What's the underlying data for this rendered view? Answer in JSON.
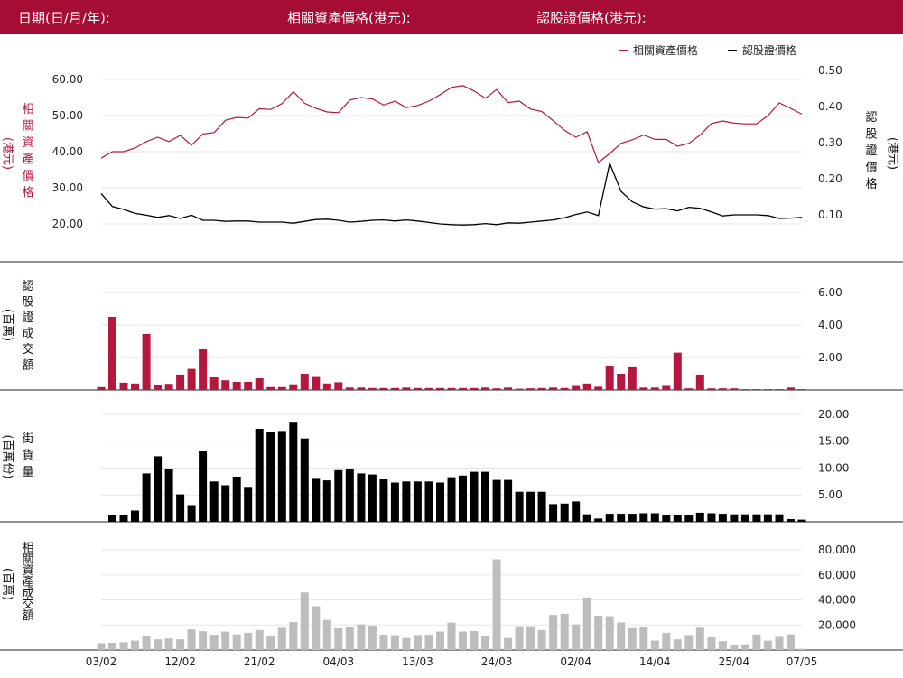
{
  "header": {
    "date_label": "日期(日/月/年):",
    "asset_price_label": "相關資產價格(港元):",
    "warrant_price_label": "認股證價格(港元):"
  },
  "colors": {
    "brand": "#a50d34",
    "asset": "#b5173f",
    "warrant": "#000000",
    "warrant_bar": "#b5173f",
    "street_bar": "#000000",
    "asset_turnover_bar": "#bdbdbd"
  },
  "chart_data": [
    {
      "type": "line",
      "legend": [
        "相關資產價格",
        "認股證價格"
      ],
      "legend_position": "top-right",
      "ylabel": "相關資產價格",
      "ylabel_unit": "(港元)",
      "y2label": "認股證價格",
      "y2label_unit": "(港元)",
      "ylim": [
        15,
        63
      ],
      "y_ticks": [
        "20.00",
        "30.00",
        "40.00",
        "50.00",
        "60.00"
      ],
      "y2lim": [
        0.025,
        0.505
      ],
      "y2_ticks": [
        "0.10",
        "0.20",
        "0.30",
        "0.40",
        "0.50"
      ],
      "series": [
        {
          "name": "相關資產價格",
          "values": [
            38.2,
            40.0,
            40.0,
            41.0,
            42.8,
            44.0,
            42.8,
            44.5,
            41.8,
            44.9,
            45.3,
            48.7,
            49.5,
            49.3,
            51.9,
            51.7,
            53.3,
            56.6,
            53.4,
            52.0,
            51.0,
            50.8,
            54.3,
            55.0,
            54.6,
            52.9,
            54.0,
            52.2,
            52.8,
            54.0,
            55.8,
            57.8,
            58.3,
            56.8,
            54.8,
            57.2,
            53.6,
            54.0,
            51.8,
            51.1,
            48.6,
            45.9,
            44.0,
            45.5,
            37.0,
            39.5,
            42.3,
            43.3,
            44.6,
            43.4,
            43.4,
            41.5,
            42.3,
            44.6,
            47.8,
            48.5,
            47.9,
            47.7,
            47.7,
            50.0,
            53.5,
            52.0,
            50.4
          ]
        },
        {
          "name": "認股證價格",
          "values": [
            0.159,
            0.123,
            0.115,
            0.104,
            0.099,
            0.093,
            0.098,
            0.09,
            0.099,
            0.085,
            0.085,
            0.082,
            0.083,
            0.083,
            0.08,
            0.08,
            0.08,
            0.077,
            0.082,
            0.087,
            0.088,
            0.085,
            0.08,
            0.082,
            0.085,
            0.086,
            0.083,
            0.086,
            0.083,
            0.079,
            0.075,
            0.073,
            0.072,
            0.073,
            0.076,
            0.073,
            0.078,
            0.077,
            0.08,
            0.083,
            0.086,
            0.092,
            0.101,
            0.108,
            0.098,
            0.243,
            0.165,
            0.136,
            0.122,
            0.116,
            0.117,
            0.111,
            0.121,
            0.118,
            0.108,
            0.097,
            0.1,
            0.1,
            0.1,
            0.098,
            0.09,
            0.091,
            0.093
          ]
        }
      ]
    },
    {
      "type": "bar",
      "ylabel": "認股證成交額",
      "ylabel_unit": "(百萬)",
      "ylim": [
        0,
        7.0
      ],
      "y_ticks": [
        "2.00",
        "4.00",
        "6.00"
      ],
      "values": [
        0.18,
        4.5,
        0.45,
        0.4,
        3.45,
        0.32,
        0.38,
        0.95,
        1.3,
        2.5,
        0.78,
        0.6,
        0.5,
        0.5,
        0.72,
        0.18,
        0.18,
        0.35,
        1.0,
        0.8,
        0.4,
        0.48,
        0.15,
        0.15,
        0.12,
        0.12,
        0.12,
        0.15,
        0.12,
        0.12,
        0.12,
        0.12,
        0.12,
        0.12,
        0.15,
        0.1,
        0.15,
        0.08,
        0.1,
        0.12,
        0.15,
        0.12,
        0.25,
        0.4,
        0.2,
        1.5,
        1.0,
        1.45,
        0.15,
        0.15,
        0.25,
        2.3,
        0.1,
        0.95,
        0.1,
        0.1,
        0.1,
        0.05,
        0.05,
        0.05,
        0.05,
        0.15,
        0.05
      ]
    },
    {
      "type": "bar",
      "ylabel": "街貨量",
      "ylabel_unit": "(百萬份)",
      "ylim": [
        0,
        22.0
      ],
      "y_ticks": [
        "5.00",
        "10.00",
        "15.00",
        "20.00"
      ],
      "values": [
        0.0,
        1.2,
        1.2,
        2.1,
        9.0,
        12.2,
        9.9,
        5.1,
        3.1,
        13.1,
        7.5,
        6.8,
        8.4,
        6.5,
        17.3,
        16.8,
        16.9,
        18.6,
        15.5,
        8.0,
        7.7,
        9.6,
        9.8,
        9.0,
        8.8,
        7.9,
        7.3,
        7.5,
        7.5,
        7.5,
        7.3,
        8.3,
        8.6,
        9.3,
        9.3,
        7.8,
        7.8,
        5.6,
        5.6,
        5.6,
        3.3,
        3.4,
        3.8,
        1.4,
        0.6,
        1.5,
        1.5,
        1.5,
        1.6,
        1.6,
        1.2,
        1.2,
        1.2,
        1.7,
        1.6,
        1.5,
        1.4,
        1.4,
        1.4,
        1.4,
        1.4,
        0.5,
        0.4
      ]
    },
    {
      "type": "bar",
      "ylabel": "相關資產成交額",
      "ylabel_unit": "(百萬)",
      "ylim": [
        0,
        88000
      ],
      "y_ticks": [
        "20,000",
        "40,000",
        "60,000",
        "80,000"
      ],
      "values": [
        5500,
        5800,
        6200,
        7500,
        11500,
        8500,
        9200,
        8600,
        16500,
        15000,
        12200,
        14800,
        12500,
        13800,
        16000,
        10800,
        17800,
        22300,
        46000,
        35000,
        24000,
        17300,
        18700,
        20500,
        19500,
        12200,
        11800,
        9600,
        12000,
        12200,
        14800,
        21900,
        14800,
        15200,
        11500,
        72500,
        9600,
        19000,
        19000,
        16000,
        28000,
        29000,
        20400,
        42000,
        27400,
        27000,
        22000,
        17500,
        18500,
        7500,
        13800,
        8500,
        12000,
        17800,
        10000,
        7000,
        3800,
        4500,
        12500,
        7500,
        10500,
        12500,
        1000
      ]
    }
  ],
  "x_axis": {
    "ticks": [
      {
        "label": "03/02",
        "index": 0
      },
      {
        "label": "12/02",
        "index": 7
      },
      {
        "label": "21/02",
        "index": 14
      },
      {
        "label": "04/03",
        "index": 21
      },
      {
        "label": "13/03",
        "index": 28
      },
      {
        "label": "24/03",
        "index": 35
      },
      {
        "label": "02/04",
        "index": 42
      },
      {
        "label": "14/04",
        "index": 49
      },
      {
        "label": "25/04",
        "index": 56
      },
      {
        "label": "07/05",
        "index": 62
      }
    ]
  }
}
